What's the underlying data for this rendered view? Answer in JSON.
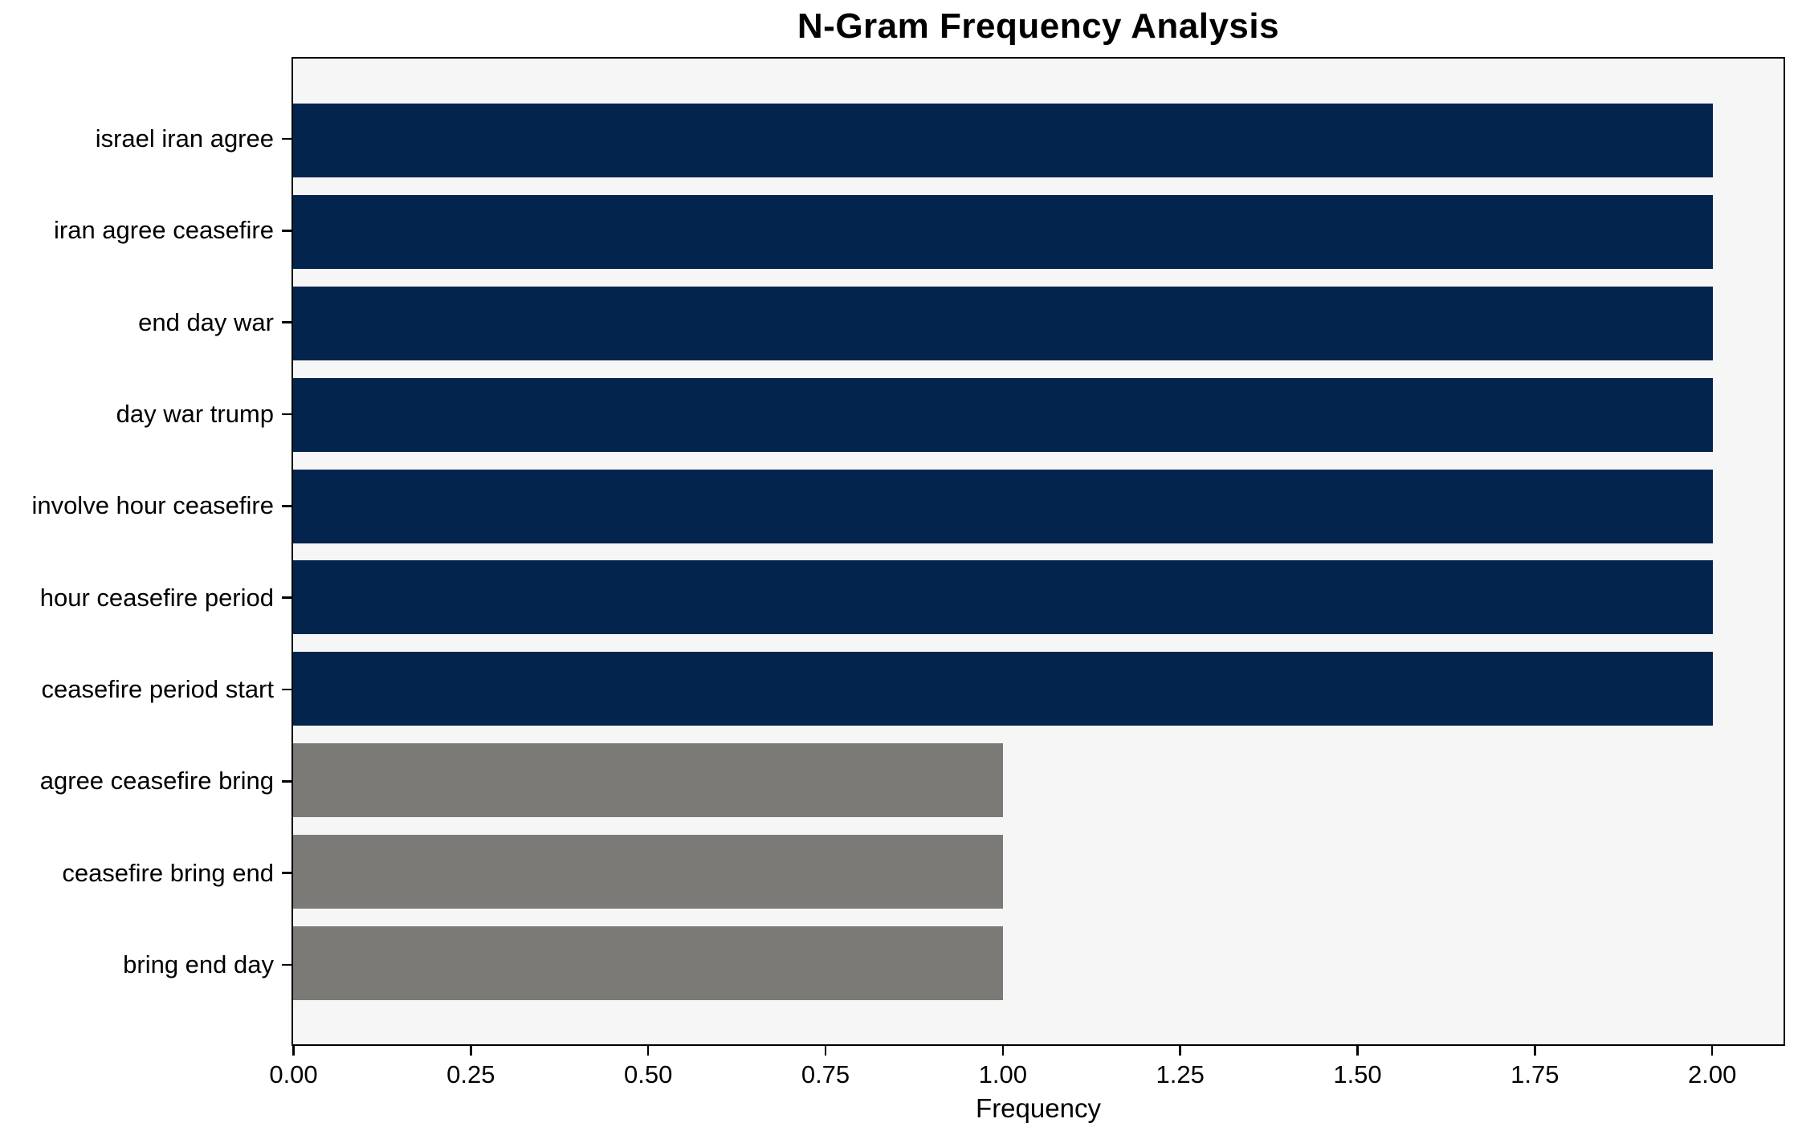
{
  "colors": {
    "bar_primary": "#02244d",
    "bar_secondary": "#7b7a77",
    "plot_background": "#f6f6f7",
    "figure_background": "#ffffff",
    "spine": "#000000",
    "text": "#000000"
  },
  "chart_data": {
    "type": "bar",
    "orientation": "horizontal",
    "title": "N-Gram Frequency Analysis",
    "xlabel": "Frequency",
    "ylabel": "",
    "categories": [
      "israel iran agree",
      "iran agree ceasefire",
      "end day war",
      "day war trump",
      "involve hour ceasefire",
      "hour ceasefire period",
      "ceasefire period start",
      "agree ceasefire bring",
      "ceasefire bring end",
      "bring end day"
    ],
    "values": [
      2,
      2,
      2,
      2,
      2,
      2,
      2,
      1,
      1,
      1
    ],
    "bar_colors": [
      "#02244d",
      "#02244d",
      "#02244d",
      "#02244d",
      "#02244d",
      "#02244d",
      "#02244d",
      "#7b7a77",
      "#7b7a77",
      "#7b7a77"
    ],
    "xlim": [
      0,
      2.1
    ],
    "xtick_values": [
      0,
      0.25,
      0.5,
      0.75,
      1.0,
      1.25,
      1.5,
      1.75,
      2.0
    ],
    "xtick_labels": [
      "0.00",
      "0.25",
      "0.50",
      "0.75",
      "1.00",
      "1.25",
      "1.50",
      "1.75",
      "2.00"
    ],
    "grid": false,
    "legend_position": "none"
  }
}
